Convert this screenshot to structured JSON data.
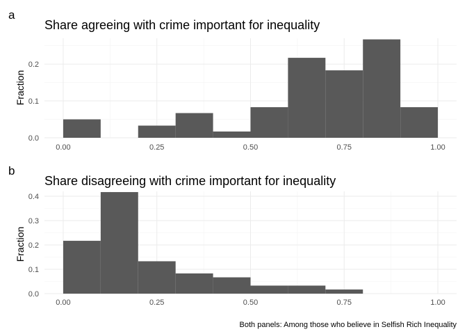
{
  "chart_data": [
    {
      "type": "bar",
      "panel_tag": "a",
      "title": "Share agreeing with crime important for inequality",
      "xlabel": "",
      "ylabel": "Fraction",
      "xlim": [
        -0.05,
        1.05
      ],
      "ylim": [
        0,
        0.27
      ],
      "xticks": [
        0,
        0.25,
        0.5,
        0.75,
        1.0
      ],
      "xtick_labels": [
        "0.00",
        "0.25",
        "0.50",
        "0.75",
        "1.00"
      ],
      "yticks": [
        0,
        0.1,
        0.2
      ],
      "ytick_labels": [
        "0.0",
        "0.1",
        "0.2"
      ],
      "bin_width": 0.1,
      "bin_starts": [
        0.0,
        0.1,
        0.2,
        0.3,
        0.4,
        0.5,
        0.6,
        0.7,
        0.8,
        0.9
      ],
      "values": [
        0.05,
        0.0,
        0.033,
        0.067,
        0.017,
        0.083,
        0.217,
        0.183,
        0.267,
        0.083
      ],
      "grid": true
    },
    {
      "type": "bar",
      "panel_tag": "b",
      "title": "Share disagreeing with crime important for inequality",
      "xlabel": "",
      "ylabel": "Fraction",
      "xlim": [
        -0.05,
        1.05
      ],
      "ylim": [
        0,
        0.42
      ],
      "xticks": [
        0,
        0.25,
        0.5,
        0.75,
        1.0
      ],
      "xtick_labels": [
        "0.00",
        "0.25",
        "0.50",
        "0.75",
        "1.00"
      ],
      "yticks": [
        0,
        0.1,
        0.2,
        0.3,
        0.4
      ],
      "ytick_labels": [
        "0.0",
        "0.1",
        "0.2",
        "0.3",
        "0.4"
      ],
      "bin_width": 0.1,
      "bin_starts": [
        0.0,
        0.1,
        0.2,
        0.3,
        0.4,
        0.5,
        0.6,
        0.7,
        0.8,
        0.9
      ],
      "values": [
        0.217,
        0.417,
        0.133,
        0.083,
        0.067,
        0.033,
        0.033,
        0.017,
        0.0,
        0.0
      ],
      "grid": true
    }
  ],
  "caption": "Both panels: Among those who believe in Selfish Rich Inequality",
  "colors": {
    "bar": "#595959",
    "grid": "#ebebeb",
    "background": "#ffffff"
  }
}
